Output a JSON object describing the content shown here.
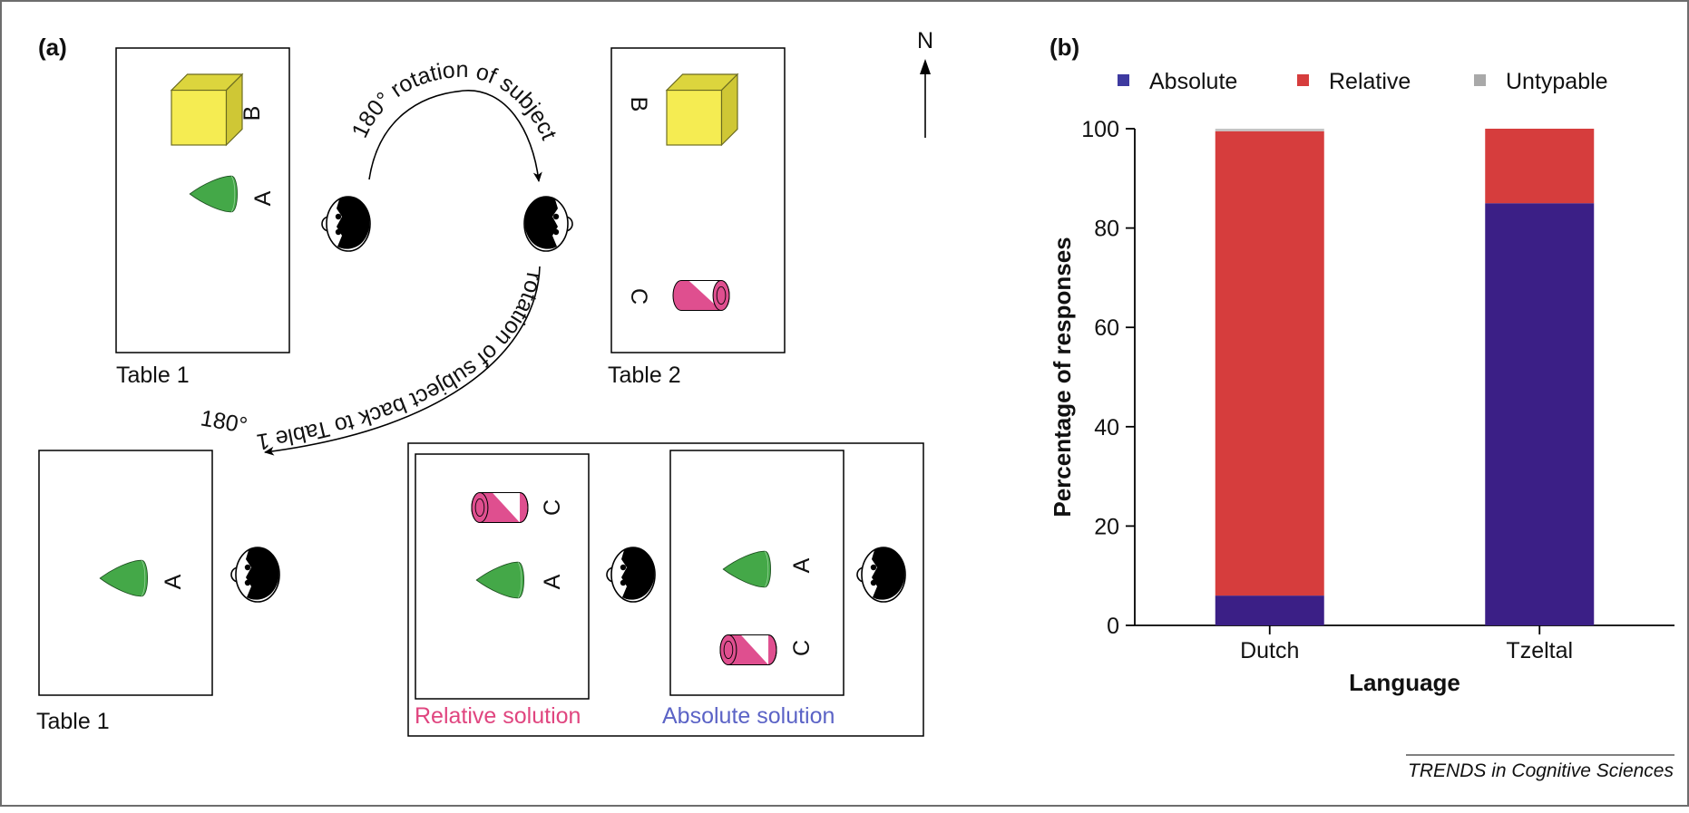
{
  "panel_a": {
    "label": "(a)",
    "compass": "N",
    "table1_top": {
      "title": "Table 1",
      "label_b": "B",
      "label_a": "A"
    },
    "table2": {
      "title": "Table 2",
      "label_b": "B",
      "label_c": "C"
    },
    "rotation1": "180° rotation of subject",
    "rotation2_deg": "180°",
    "rotation2_text": "rotation of subject back to Table 1",
    "table1_bottom": {
      "title": "Table 1",
      "label_a": "A"
    },
    "relative_solution": {
      "caption": "Relative solution",
      "label_c": "C",
      "label_a": "A"
    },
    "absolute_solution": {
      "caption": "Absolute solution",
      "label_a": "A",
      "label_c": "C"
    },
    "colors": {
      "relative": "#e0457f",
      "absolute": "#5b63c6",
      "cube": "#f5ec52",
      "cone": "#44a848",
      "cylinder": "#df4f8f"
    }
  },
  "panel_b": {
    "label": "(b)"
  },
  "credit": "TRENDS in Cognitive Sciences",
  "chart_data": {
    "type": "bar",
    "stacked": true,
    "categories": [
      "Dutch",
      "Tzeltal"
    ],
    "series": [
      {
        "name": "Absolute",
        "color": "#3b1f86",
        "legend_color": "#3e3aa0",
        "values": [
          6,
          85
        ]
      },
      {
        "name": "Relative",
        "color": "#d63d3d",
        "legend_color": "#d63d3d",
        "values": [
          93.5,
          15
        ]
      },
      {
        "name": "Untypable",
        "color": "#c4c4c4",
        "legend_color": "#a9a9a9",
        "values": [
          0.5,
          0
        ]
      }
    ],
    "xlabel": "Language",
    "ylabel": "Percentage of responses",
    "ylim": [
      0,
      100
    ],
    "yticks": [
      0,
      20,
      40,
      60,
      80,
      100
    ],
    "legend_position": "top",
    "grid": false
  }
}
